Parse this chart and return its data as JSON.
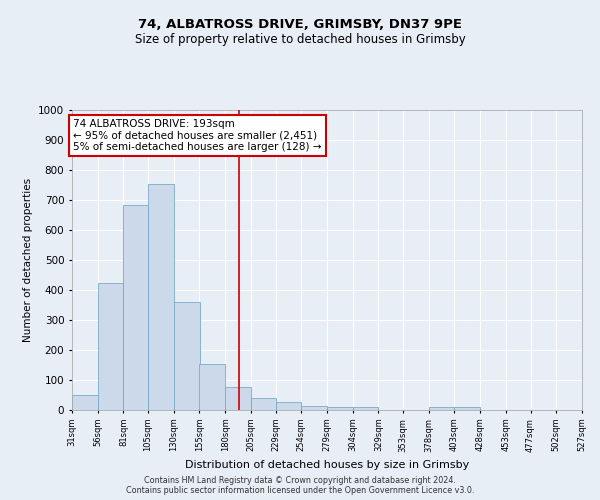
{
  "title1": "74, ALBATROSS DRIVE, GRIMSBY, DN37 9PE",
  "title2": "Size of property relative to detached houses in Grimsby",
  "xlabel": "Distribution of detached houses by size in Grimsby",
  "ylabel": "Number of detached properties",
  "bin_edges": [
    31,
    56,
    81,
    105,
    130,
    155,
    180,
    205,
    229,
    254,
    279,
    304,
    329,
    353,
    378,
    403,
    428,
    453,
    477,
    502,
    527
  ],
  "bar_heights": [
    50,
    425,
    685,
    755,
    360,
    153,
    78,
    40,
    28,
    15,
    10,
    10,
    0,
    0,
    10,
    10,
    0,
    0,
    0,
    0
  ],
  "bar_color": "#ccd9ea",
  "bar_edge_color": "#7aaac8",
  "bg_color": "#e8eef6",
  "grid_color": "#ffffff",
  "red_line_x": 193,
  "annotation_line1": "74 ALBATROSS DRIVE: 193sqm",
  "annotation_line2": "← 95% of detached houses are smaller (2,451)",
  "annotation_line3": "5% of semi-detached houses are larger (128) →",
  "annotation_box_color": "#ffffff",
  "annotation_box_edge": "#cc0000",
  "ylim": [
    0,
    1000
  ],
  "tick_labels": [
    "31sqm",
    "56sqm",
    "81sqm",
    "105sqm",
    "130sqm",
    "155sqm",
    "180sqm",
    "205sqm",
    "229sqm",
    "254sqm",
    "279sqm",
    "304sqm",
    "329sqm",
    "353sqm",
    "378sqm",
    "403sqm",
    "428sqm",
    "453sqm",
    "477sqm",
    "502sqm",
    "527sqm"
  ],
  "footer1": "Contains HM Land Registry data © Crown copyright and database right 2024.",
  "footer2": "Contains public sector information licensed under the Open Government Licence v3.0."
}
